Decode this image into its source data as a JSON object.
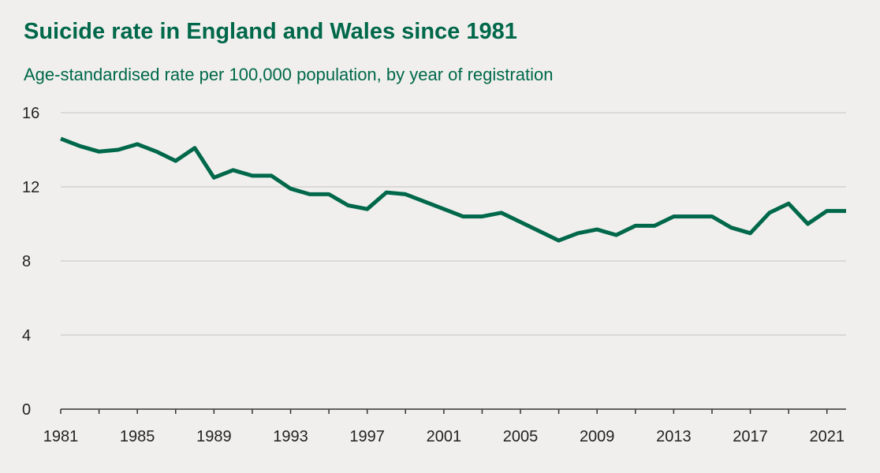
{
  "chart_data": {
    "type": "line",
    "title": "Suicide rate in England and Wales since 1981",
    "subtitle": "Age-standardised rate per 100,000 population, by year of registration",
    "xlabel": "",
    "ylabel": "",
    "xlim": [
      1981,
      2022
    ],
    "ylim": [
      0,
      16
    ],
    "y_ticks": [
      0,
      4,
      8,
      12,
      16
    ],
    "x_tick_labels": [
      "1981",
      "1985",
      "1989",
      "1993",
      "1997",
      "2001",
      "2005",
      "2009",
      "2013",
      "2017",
      "2021"
    ],
    "grid": "horizontal",
    "line_color": "#00684a",
    "x": [
      1981,
      1982,
      1983,
      1984,
      1985,
      1986,
      1987,
      1988,
      1989,
      1990,
      1991,
      1992,
      1993,
      1994,
      1995,
      1996,
      1997,
      1998,
      1999,
      2000,
      2001,
      2002,
      2003,
      2004,
      2005,
      2006,
      2007,
      2008,
      2009,
      2010,
      2011,
      2012,
      2013,
      2014,
      2015,
      2016,
      2017,
      2018,
      2019,
      2020,
      2021,
      2022
    ],
    "series": [
      {
        "values": [
          14.6,
          14.2,
          13.9,
          14.0,
          14.3,
          13.9,
          13.4,
          14.1,
          12.5,
          12.9,
          12.6,
          12.6,
          11.9,
          11.6,
          11.6,
          11.0,
          10.8,
          11.7,
          11.6,
          11.2,
          10.8,
          10.4,
          10.4,
          10.6,
          10.1,
          9.6,
          9.1,
          9.5,
          9.7,
          9.4,
          9.9,
          9.9,
          10.4,
          10.4,
          10.4,
          9.8,
          9.5,
          10.6,
          11.1,
          10.0,
          10.7,
          10.7
        ]
      }
    ]
  }
}
